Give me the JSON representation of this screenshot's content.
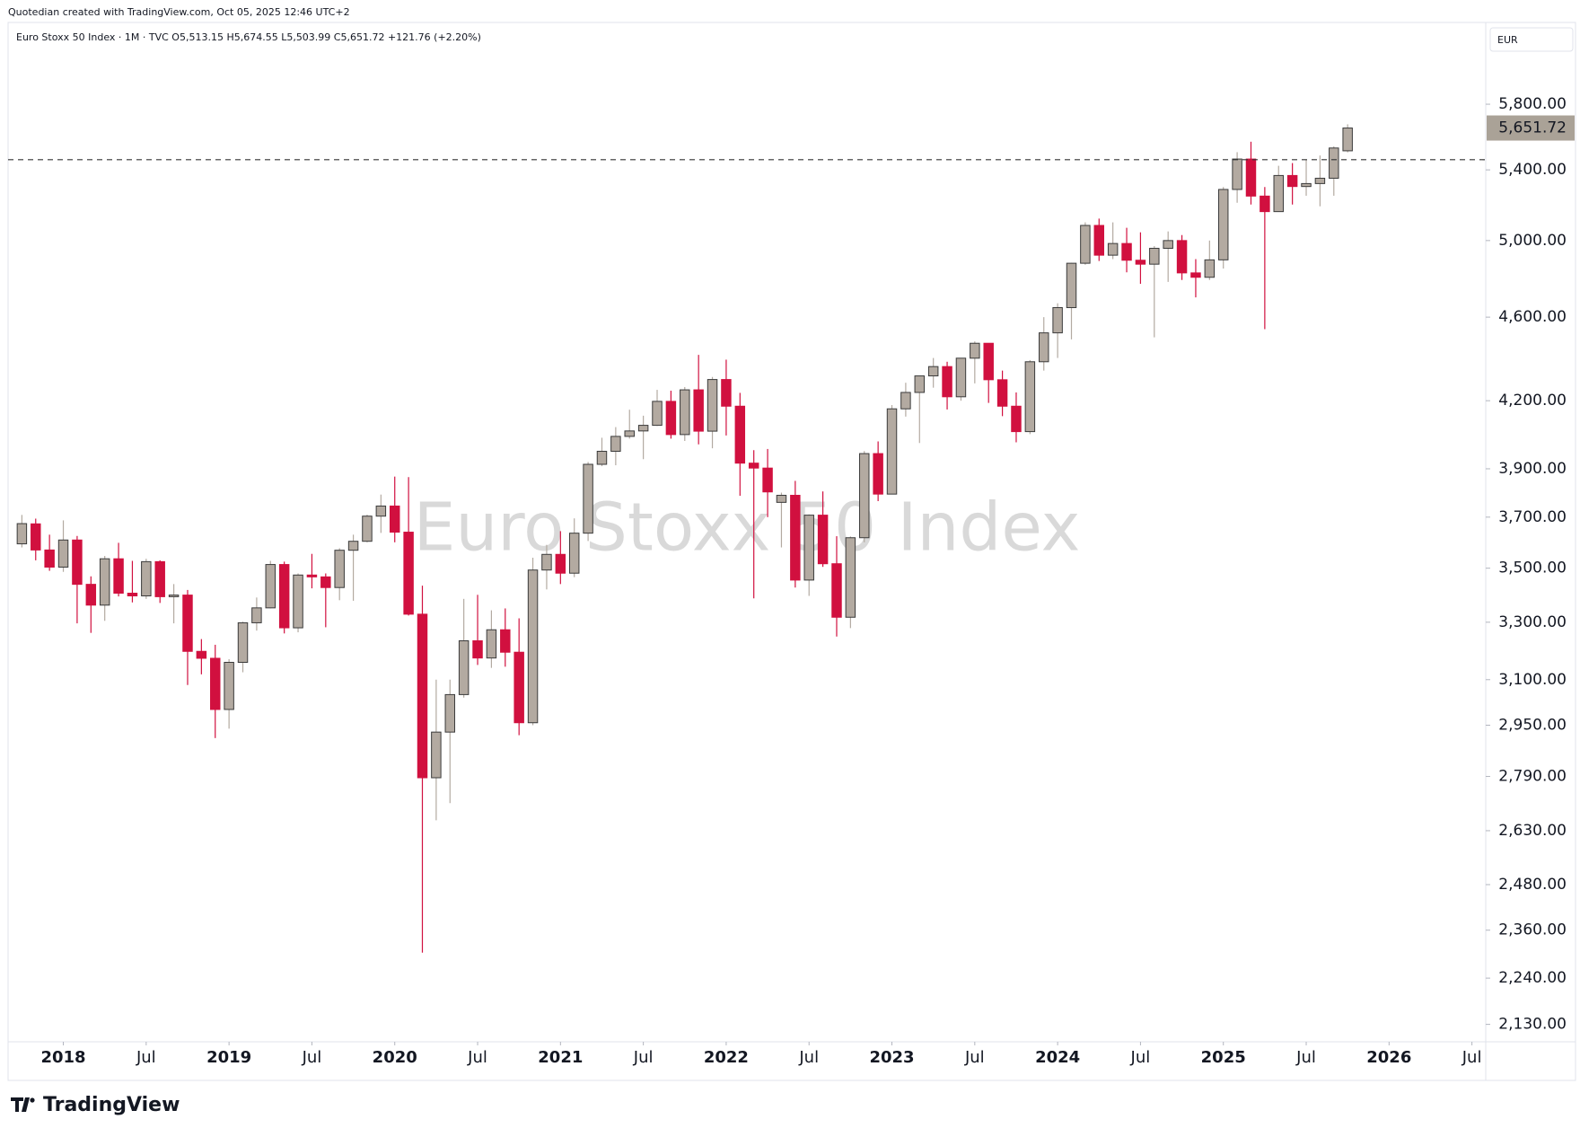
{
  "attribution": "Quotedian created with TradingView.com, Oct 05, 2025 12:46 UTC+2",
  "legend": "Euro Stoxx 50 Index · 1M · TVC  O5,513.15  H5,674.55  L5,503.99  C5,651.72  +121.76 (+2.20%)",
  "currency": "EUR",
  "brand": "TradingView",
  "chart_data": {
    "type": "candlestick",
    "watermark": "Euro Stoxx 50 Index",
    "up_color": "#b3aaa1",
    "down_color": "#d1103f",
    "log_scale": true,
    "grid": false,
    "last_price_label": "5,651.72",
    "reference_line": 5460,
    "x": [
      "2017-10",
      "2017-11",
      "2017-12",
      "2018-01",
      "2018-02",
      "2018-03",
      "2018-04",
      "2018-05",
      "2018-06",
      "2018-07",
      "2018-08",
      "2018-09",
      "2018-10",
      "2018-11",
      "2018-12",
      "2019-01",
      "2019-02",
      "2019-03",
      "2019-04",
      "2019-05",
      "2019-06",
      "2019-07",
      "2019-08",
      "2019-09",
      "2019-10",
      "2019-11",
      "2019-12",
      "2020-01",
      "2020-02",
      "2020-03",
      "2020-04",
      "2020-05",
      "2020-06",
      "2020-07",
      "2020-08",
      "2020-09",
      "2020-10",
      "2020-11",
      "2020-12",
      "2021-01",
      "2021-02",
      "2021-03",
      "2021-04",
      "2021-05",
      "2021-06",
      "2021-07",
      "2021-08",
      "2021-09",
      "2021-10",
      "2021-11",
      "2021-12",
      "2022-01",
      "2022-02",
      "2022-03",
      "2022-04",
      "2022-05",
      "2022-06",
      "2022-07",
      "2022-08",
      "2022-09",
      "2022-10",
      "2022-11",
      "2022-12",
      "2023-01",
      "2023-02",
      "2023-03",
      "2023-04",
      "2023-05",
      "2023-06",
      "2023-07",
      "2023-08",
      "2023-09",
      "2023-10",
      "2023-11",
      "2023-12",
      "2024-01",
      "2024-02",
      "2024-03",
      "2024-04",
      "2024-05",
      "2024-06",
      "2024-07",
      "2024-08",
      "2024-09",
      "2024-10",
      "2024-11",
      "2024-12",
      "2025-01",
      "2025-02",
      "2025-03",
      "2025-04",
      "2025-05",
      "2025-06",
      "2025-07",
      "2025-08",
      "2025-09",
      "2025-10"
    ],
    "open": [
      3594,
      3673,
      3570,
      3504,
      3609,
      3439,
      3362,
      3536,
      3406,
      3396,
      3525,
      3393,
      3399,
      3197,
      3173,
      3001,
      3159,
      3298,
      3352,
      3514,
      3280,
      3474,
      3467,
      3427,
      3569,
      3604,
      3704,
      3745,
      3640,
      3329,
      2786,
      2928,
      3050,
      3234,
      3174,
      3273,
      3194,
      2958,
      3493,
      3553,
      3481,
      3636,
      3919,
      3975,
      4040,
      4064,
      4089,
      4197,
      4048,
      4250,
      4063,
      4298,
      4175,
      3924,
      3903,
      3760,
      3789,
      3455,
      3708,
      3517,
      3318,
      3618,
      3965,
      3794,
      4163,
      4238,
      4315,
      4359,
      4218,
      4399,
      4471,
      4297,
      4175,
      4061,
      4382,
      4522,
      4648,
      4878,
      5083,
      4921,
      4984,
      4894,
      4873,
      4958,
      5000,
      4827,
      4804,
      4896,
      5286,
      5464,
      5248,
      5160,
      5367,
      5303,
      5320,
      5351,
      5513.15
    ],
    "high": [
      3709,
      3694,
      3630,
      3687,
      3625,
      3469,
      3547,
      3598,
      3528,
      3536,
      3530,
      3440,
      3418,
      3240,
      3220,
      3170,
      3302,
      3390,
      3528,
      3525,
      3480,
      3555,
      3480,
      3577,
      3630,
      3710,
      3792,
      3867,
      3865,
      3434,
      3100,
      3100,
      3385,
      3400,
      3343,
      3350,
      3314,
      3540,
      3590,
      3644,
      3695,
      3929,
      4034,
      4081,
      4159,
      4132,
      4250,
      4246,
      4263,
      4415,
      4310,
      4392,
      4236,
      3980,
      3985,
      3800,
      3849,
      3711,
      3805,
      3624,
      3623,
      3976,
      4018,
      4180,
      4283,
      4316,
      4400,
      4382,
      4400,
      4480,
      4471,
      4340,
      4238,
      4390,
      4600,
      4670,
      4880,
      5100,
      5121,
      5100,
      5070,
      5045,
      4970,
      5050,
      5030,
      4900,
      5000,
      5300,
      5505,
      5568,
      5300,
      5424,
      5440,
      5461,
      5485,
      5540,
      5674.55
    ],
    "low": [
      3580,
      3530,
      3490,
      3486,
      3296,
      3262,
      3305,
      3394,
      3372,
      3385,
      3370,
      3296,
      3082,
      3118,
      2909,
      2939,
      3125,
      3270,
      3350,
      3260,
      3264,
      3424,
      3282,
      3380,
      3378,
      3600,
      3637,
      3600,
      3324,
      2303,
      2660,
      2710,
      3040,
      3150,
      3140,
      3144,
      2918,
      2950,
      3420,
      3440,
      3466,
      3605,
      3911,
      3915,
      4030,
      3941,
      4086,
      4030,
      4020,
      4005,
      3988,
      4044,
      3787,
      3387,
      3700,
      3580,
      3427,
      3396,
      3505,
      3249,
      3279,
      3600,
      3765,
      3794,
      4128,
      4011,
      4260,
      4160,
      4200,
      4280,
      4190,
      4130,
      4014,
      4050,
      4340,
      4400,
      4490,
      4870,
      4890,
      4900,
      4830,
      4770,
      4500,
      4780,
      4790,
      4700,
      4790,
      4850,
      5210,
      5200,
      4540,
      5160,
      5200,
      5250,
      5190,
      5250,
      5503.99
    ],
    "close": [
      3674,
      3570,
      3504,
      3609,
      3439,
      3362,
      3536,
      3406,
      3396,
      3525,
      3393,
      3399,
      3197,
      3173,
      3001,
      3159,
      3298,
      3352,
      3514,
      3280,
      3474,
      3467,
      3427,
      3569,
      3604,
      3704,
      3745,
      3640,
      3329,
      2786,
      2928,
      3050,
      3234,
      3174,
      3273,
      3194,
      2958,
      3493,
      3553,
      3481,
      3636,
      3919,
      3975,
      4040,
      4064,
      4089,
      4197,
      4048,
      4250,
      4063,
      4298,
      4175,
      3924,
      3903,
      3803,
      3789,
      3455,
      3708,
      3517,
      3318,
      3618,
      3965,
      3794,
      4163,
      4238,
      4315,
      4359,
      4218,
      4399,
      4471,
      4297,
      4175,
      4061,
      4382,
      4522,
      4648,
      4878,
      5083,
      4921,
      4984,
      4894,
      4873,
      4958,
      5000,
      4827,
      4804,
      4896,
      5286,
      5464,
      5248,
      5160,
      5367,
      5303,
      5320,
      5351,
      5530,
      5651.72
    ],
    "xlim": [
      "2017-09",
      "2026-08"
    ],
    "xticks": [
      {
        "value": "2018-01",
        "label": "2018"
      },
      {
        "value": "2018-07",
        "label": "Jul"
      },
      {
        "value": "2019-01",
        "label": "2019"
      },
      {
        "value": "2019-07",
        "label": "Jul"
      },
      {
        "value": "2020-01",
        "label": "2020"
      },
      {
        "value": "2020-07",
        "label": "Jul"
      },
      {
        "value": "2021-01",
        "label": "2021"
      },
      {
        "value": "2021-07",
        "label": "Jul"
      },
      {
        "value": "2022-01",
        "label": "2022"
      },
      {
        "value": "2022-07",
        "label": "Jul"
      },
      {
        "value": "2023-01",
        "label": "2023"
      },
      {
        "value": "2023-07",
        "label": "Jul"
      },
      {
        "value": "2024-01",
        "label": "2024"
      },
      {
        "value": "2024-07",
        "label": "Jul"
      },
      {
        "value": "2025-01",
        "label": "2025"
      },
      {
        "value": "2025-07",
        "label": "Jul"
      },
      {
        "value": "2026-01",
        "label": "2026"
      },
      {
        "value": "2026-07",
        "label": "Jul"
      }
    ],
    "ylim": [
      2090,
      6340
    ],
    "yticks": [
      {
        "value": 5800,
        "label": "5,800.00"
      },
      {
        "value": 5400,
        "label": "5,400.00"
      },
      {
        "value": 5000,
        "label": "5,000.00"
      },
      {
        "value": 4600,
        "label": "4,600.00"
      },
      {
        "value": 4200,
        "label": "4,200.00"
      },
      {
        "value": 3900,
        "label": "3,900.00"
      },
      {
        "value": 3700,
        "label": "3,700.00"
      },
      {
        "value": 3500,
        "label": "3,500.00"
      },
      {
        "value": 3300,
        "label": "3,300.00"
      },
      {
        "value": 3100,
        "label": "3,100.00"
      },
      {
        "value": 2950,
        "label": "2,950.00"
      },
      {
        "value": 2790,
        "label": "2,790.00"
      },
      {
        "value": 2630,
        "label": "2,630.00"
      },
      {
        "value": 2480,
        "label": "2,480.00"
      },
      {
        "value": 2360,
        "label": "2,360.00"
      },
      {
        "value": 2240,
        "label": "2,240.00"
      },
      {
        "value": 2130,
        "label": "2,130.00"
      }
    ]
  }
}
